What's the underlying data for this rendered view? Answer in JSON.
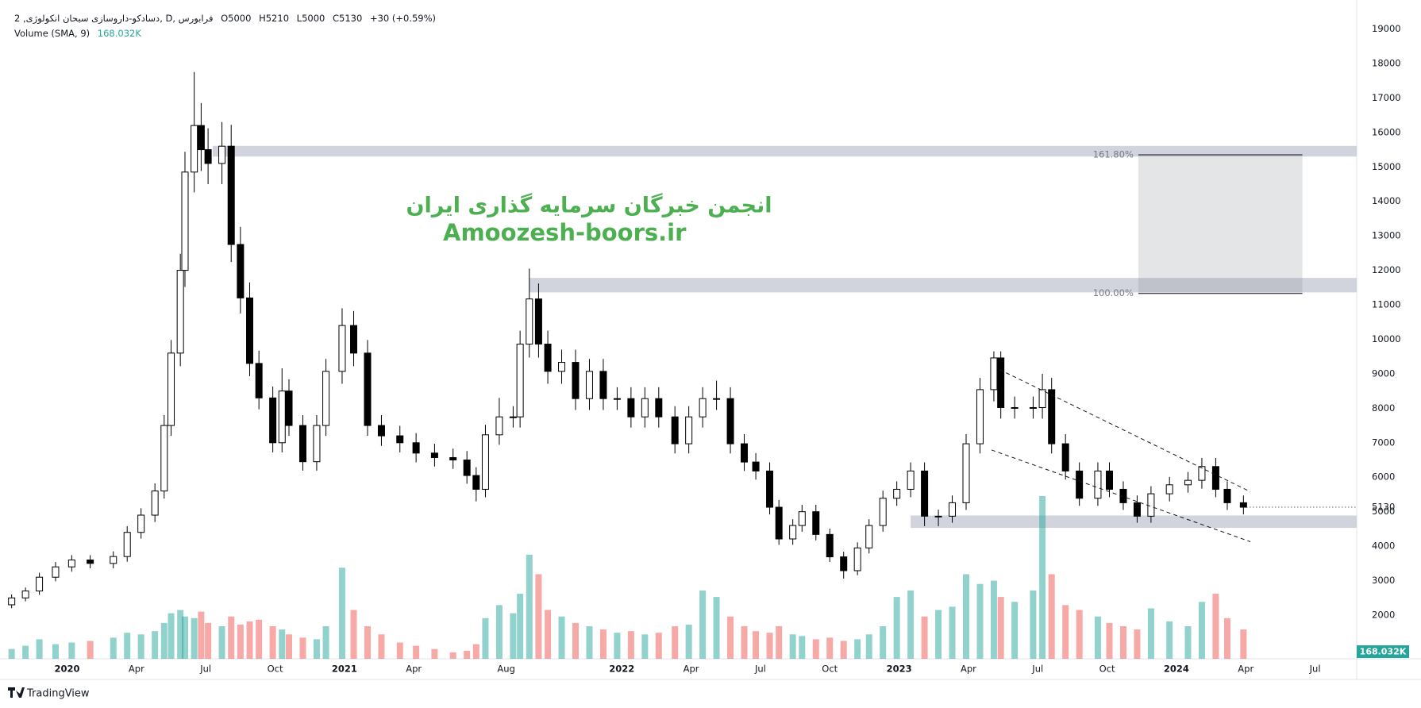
{
  "chart_data": {
    "type": "candlestick",
    "legend": {
      "symbol": "دسادکو-داروسازی سبحان انکولوژی, 2, D, فرابورس",
      "ohlc": [
        "O5000",
        "H5210",
        "L5000",
        "C5130"
      ],
      "change": "+30 (+0.59%)"
    },
    "volume_legend": {
      "name": "Volume (SMA, 9)",
      "value": "168.032K"
    },
    "x": [
      -2.4,
      -1.8,
      -1.2,
      -0.5,
      0.2,
      1,
      2,
      2.6,
      3.2,
      3.8,
      4.2,
      4.5,
      4.9,
      5.1,
      5.5,
      5.8,
      6.1,
      6.7,
      7.1,
      7.5,
      7.9,
      8.3,
      8.9,
      9.3,
      9.6,
      10.2,
      10.8,
      11.2,
      11.9,
      12.4,
      13,
      13.6,
      14.4,
      15.1,
      15.9,
      16.7,
      17.3,
      17.7,
      18.1,
      18.7,
      19.3,
      19.6,
      20,
      20.4,
      20.8,
      21.4,
      22,
      22.6,
      23.2,
      23.8,
      24.4,
      25,
      25.6,
      26.3,
      26.9,
      27.5,
      28.1,
      28.7,
      29.3,
      29.8,
      30.4,
      30.8,
      31.4,
      31.8,
      32.4,
      33,
      33.6,
      34.2,
      34.7,
      35.3,
      35.9,
      36.5,
      37.1,
      37.7,
      38.3,
      38.9,
      39.5,
      40.1,
      40.4,
      41,
      41.8,
      42.2,
      42.6,
      43.2,
      43.8,
      44.6,
      45.1,
      45.7,
      46.3,
      46.9,
      47.7,
      48.5,
      49.1,
      49.7,
      50.2,
      50.9
    ],
    "open": [
      2300,
      2500,
      2700,
      3100,
      3400,
      3600,
      3500,
      3700,
      4400,
      4900,
      5600,
      7500,
      9600,
      12000,
      14850,
      16200,
      15500,
      15100,
      15600,
      12750,
      11200,
      9300,
      8300,
      7000,
      8500,
      7500,
      6450,
      7500,
      9070,
      10400,
      9600,
      7500,
      7200,
      7000,
      6700,
      6570,
      6500,
      6050,
      5650,
      7230,
      7750,
      7750,
      9860,
      11170,
      9860,
      9070,
      9330,
      8280,
      9070,
      8280,
      8280,
      7750,
      8280,
      7750,
      6970,
      7750,
      8280,
      8280,
      6970,
      6440,
      6180,
      5130,
      4210,
      4600,
      5000,
      4340,
      3690,
      3290,
      3950,
      4600,
      5390,
      5650,
      6180,
      4870,
      4870,
      5260,
      6970,
      8540,
      9460,
      8020,
      8020,
      8020,
      8540,
      6970,
      6180,
      5390,
      6180,
      5650,
      5260,
      4870,
      5520,
      5780,
      5910,
      6310,
      5650,
      5260
    ],
    "high": [
      2600,
      2800,
      3230,
      3540,
      3740,
      3740,
      3850,
      4580,
      5100,
      5820,
      7800,
      9980,
      12480,
      15440,
      17750,
      16850,
      16120,
      16300,
      16220,
      13260,
      11650,
      9670,
      8630,
      9160,
      8840,
      7800,
      7800,
      9430,
      10900,
      10820,
      9980,
      7800,
      7490,
      7280,
      6970,
      6830,
      6760,
      6290,
      7520,
      8300,
      8060,
      10250,
      12050,
      11620,
      10250,
      9700,
      9700,
      9430,
      9430,
      8610,
      8610,
      8610,
      8610,
      8060,
      8060,
      8610,
      8800,
      8610,
      7250,
      6700,
      6430,
      5340,
      4780,
      5200,
      5200,
      4510,
      3840,
      4110,
      4780,
      5610,
      5880,
      6430,
      6430,
      5060,
      5470,
      7250,
      8880,
      9650,
      9650,
      8340,
      8340,
      9000,
      8880,
      7250,
      6430,
      6430,
      6430,
      5880,
      5470,
      5740,
      6010,
      6150,
      6560,
      6560,
      5880,
      5470
    ],
    "low": [
      2200,
      2400,
      2590,
      2980,
      3260,
      3360,
      3360,
      3550,
      4220,
      4700,
      5380,
      7200,
      9220,
      11520,
      14260,
      14880,
      14500,
      14500,
      12240,
      10750,
      8930,
      7970,
      6720,
      6720,
      7200,
      6190,
      6190,
      7200,
      8710,
      9220,
      7200,
      6910,
      6720,
      6430,
      6310,
      6240,
      5810,
      5300,
      5420,
      6940,
      7440,
      7440,
      9470,
      9470,
      8710,
      8710,
      7950,
      7950,
      7950,
      7950,
      7440,
      7440,
      7440,
      6690,
      6690,
      7440,
      7950,
      6690,
      6180,
      5930,
      4920,
      4040,
      4040,
      4420,
      4170,
      3540,
      3060,
      3160,
      3790,
      4420,
      5170,
      5420,
      4580,
      4580,
      4680,
      5050,
      6690,
      8200,
      7700,
      7700,
      7700,
      7700,
      6690,
      5930,
      5170,
      5170,
      5420,
      5050,
      4680,
      4680,
      5300,
      5550,
      5670,
      5420,
      5050,
      4920
    ],
    "close": [
      2500,
      2700,
      3100,
      3400,
      3600,
      3500,
      3700,
      4400,
      4900,
      5600,
      7500,
      9600,
      12000,
      14850,
      16200,
      15500,
      15100,
      15600,
      12750,
      11200,
      9300,
      8300,
      7000,
      8500,
      7500,
      6450,
      7500,
      9070,
      10400,
      9600,
      7500,
      7200,
      7000,
      6700,
      6570,
      6500,
      6050,
      5650,
      7230,
      7750,
      7750,
      9860,
      11170,
      9860,
      9070,
      9330,
      8280,
      9070,
      8280,
      8280,
      7750,
      8280,
      7750,
      6970,
      7750,
      8280,
      8280,
      6970,
      6440,
      6180,
      5130,
      4210,
      4600,
      5000,
      4340,
      3690,
      3290,
      3950,
      4600,
      5390,
      5650,
      6180,
      4870,
      4870,
      5260,
      6970,
      8540,
      9460,
      8020,
      8020,
      8020,
      8540,
      6970,
      6180,
      5390,
      6180,
      5650,
      5260,
      4870,
      5520,
      5780,
      5910,
      6310,
      5650,
      5260,
      5130
    ],
    "volume": [
      60,
      80,
      120,
      90,
      100,
      110,
      130,
      160,
      150,
      170,
      220,
      280,
      300,
      260,
      250,
      290,
      220,
      200,
      260,
      210,
      230,
      240,
      200,
      180,
      150,
      130,
      120,
      200,
      560,
      300,
      200,
      150,
      100,
      80,
      60,
      40,
      50,
      90,
      250,
      330,
      280,
      400,
      640,
      520,
      300,
      260,
      220,
      200,
      180,
      160,
      170,
      150,
      160,
      200,
      210,
      420,
      380,
      260,
      200,
      170,
      160,
      200,
      150,
      140,
      120,
      130,
      110,
      120,
      150,
      200,
      380,
      420,
      260,
      300,
      320,
      520,
      460,
      480,
      380,
      350,
      420,
      1000,
      520,
      330,
      300,
      260,
      220,
      200,
      180,
      310,
      230,
      200,
      350,
      400,
      250,
      180
    ],
    "up_color": "#ffffff",
    "down_color": "#000000",
    "volume_up_color": "#26a69a",
    "volume_down_color": "#ef5350",
    "xlim": [
      -2.56,
      55.8
    ],
    "xticks": [
      {
        "value": 0,
        "label": "2020"
      },
      {
        "value": 3,
        "label": "Apr"
      },
      {
        "value": 6,
        "label": "Jul"
      },
      {
        "value": 9,
        "label": "Oct"
      },
      {
        "value": 12,
        "label": "2021"
      },
      {
        "value": 15,
        "label": "Apr"
      },
      {
        "value": 19,
        "label": "Aug"
      },
      {
        "value": 24,
        "label": "2022"
      },
      {
        "value": 27,
        "label": "Apr"
      },
      {
        "value": 30,
        "label": "Jul"
      },
      {
        "value": 33,
        "label": "Oct"
      },
      {
        "value": 36,
        "label": "2023"
      },
      {
        "value": 39,
        "label": "Apr"
      },
      {
        "value": 42,
        "label": "Jul"
      },
      {
        "value": 45,
        "label": "Oct"
      },
      {
        "value": 48,
        "label": "2024"
      },
      {
        "value": 51,
        "label": "Apr"
      },
      {
        "value": 54,
        "label": "Jul"
      }
    ],
    "ylim": [
      734,
      19610
    ],
    "yticks": [
      2000,
      3000,
      4000,
      5000,
      6000,
      7000,
      8000,
      9000,
      10000,
      11000,
      12000,
      13000,
      14000,
      15000,
      16000,
      17000,
      18000,
      19000
    ],
    "grid": false,
    "last_price": 5130,
    "volume_badge": "168.032K",
    "fib_levels": [
      {
        "label": "161.80%",
        "low": 15300,
        "high": 15610,
        "x_start": 6.3
      },
      {
        "label": "100.00%",
        "low": 11360,
        "high": 11780,
        "x_start": 20
      }
    ],
    "fib_box": {
      "x0": 46.35,
      "x1": 53.45,
      "low": 11330,
      "high": 15350
    },
    "support_zone": {
      "x_start": 36.5,
      "low": 4530,
      "high": 4890
    },
    "channel": [
      {
        "x0": 40.35,
        "y0": 9120,
        "x1": 51.2,
        "y1": 5580
      },
      {
        "x0": 40,
        "y0": 6790,
        "x1": 51.2,
        "y1": 4130
      }
    ],
    "watermark": [
      "انجمن خبرگان سرمایه گذاری ایران",
      "Amoozesh-boors.ir"
    ],
    "branding": "TradingView"
  }
}
